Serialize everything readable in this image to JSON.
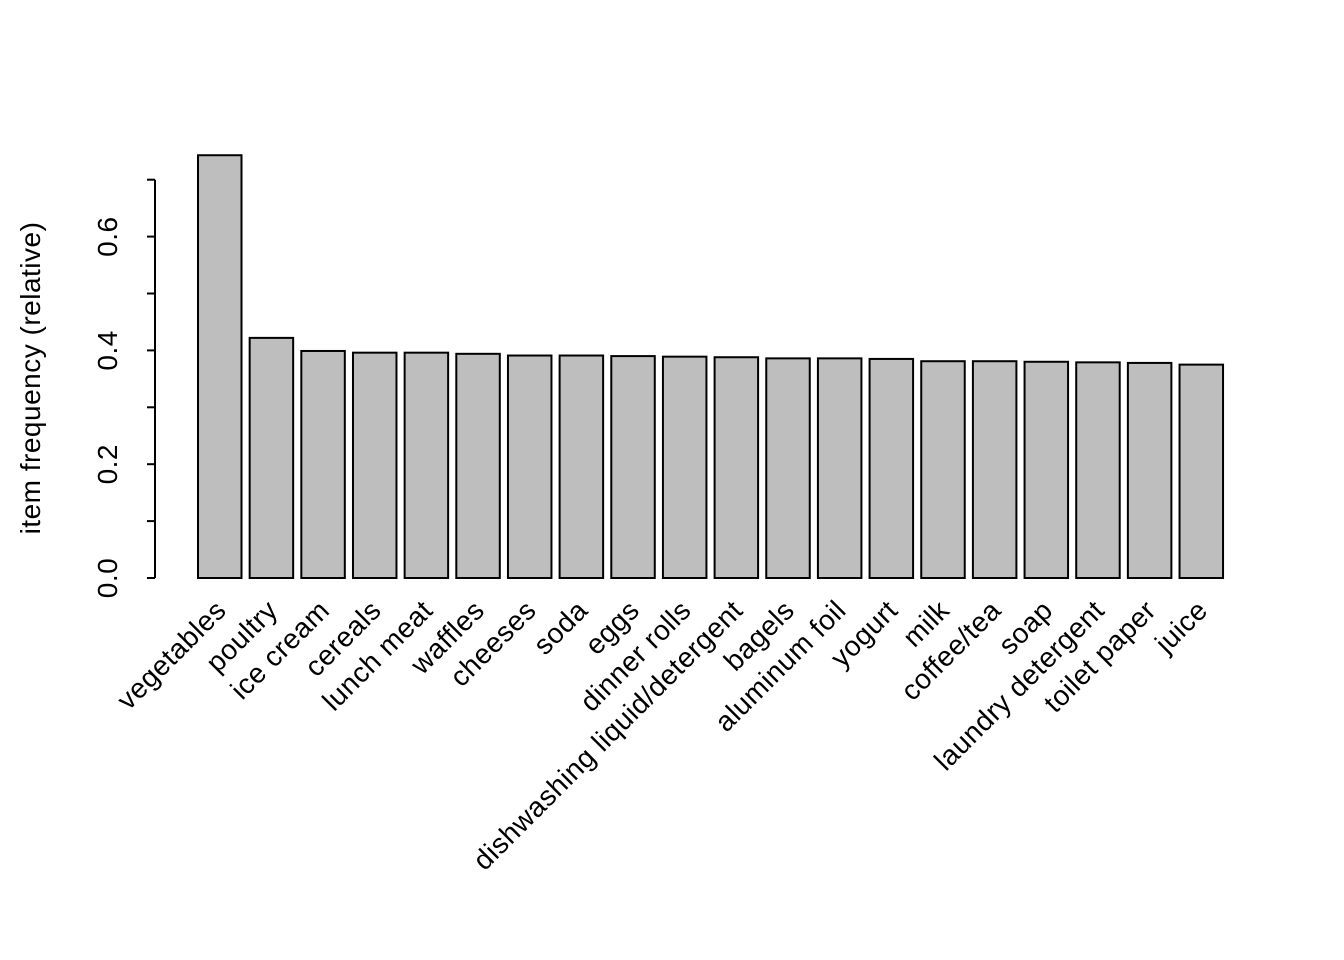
{
  "chart_data": {
    "type": "bar",
    "title": "",
    "xlabel": "",
    "ylabel": "item frequency (relative)",
    "categories": [
      "vegetables",
      "poultry",
      "ice cream",
      "cereals",
      "lunch meat",
      "waffles",
      "cheeses",
      "soda",
      "eggs",
      "dinner rolls",
      "dishwashing liquid/detergent",
      "bagels",
      "aluminum foil",
      "yogurt",
      "milk",
      "coffee/tea",
      "soap",
      "laundry detergent",
      "toilet paper",
      "juice"
    ],
    "values": [
      0.743,
      0.422,
      0.399,
      0.396,
      0.396,
      0.394,
      0.391,
      0.391,
      0.39,
      0.389,
      0.388,
      0.386,
      0.386,
      0.385,
      0.381,
      0.381,
      0.38,
      0.379,
      0.378,
      0.375
    ],
    "ylim": [
      0,
      0.7
    ],
    "yticks": [
      0,
      0.1,
      0.2,
      0.3,
      0.4,
      0.5,
      0.6,
      0.7
    ],
    "ytick_labels": [
      "0.0",
      "",
      "0.2",
      "",
      "0.4",
      "",
      "0.6",
      ""
    ],
    "grid": false,
    "legend": null,
    "x_label_rotation_deg": 45,
    "colors": {
      "bar_fill": "#BEBEBE",
      "bar_stroke": "#000000",
      "axis": "#000000",
      "text": "#000000",
      "background": "#FFFFFF"
    }
  }
}
